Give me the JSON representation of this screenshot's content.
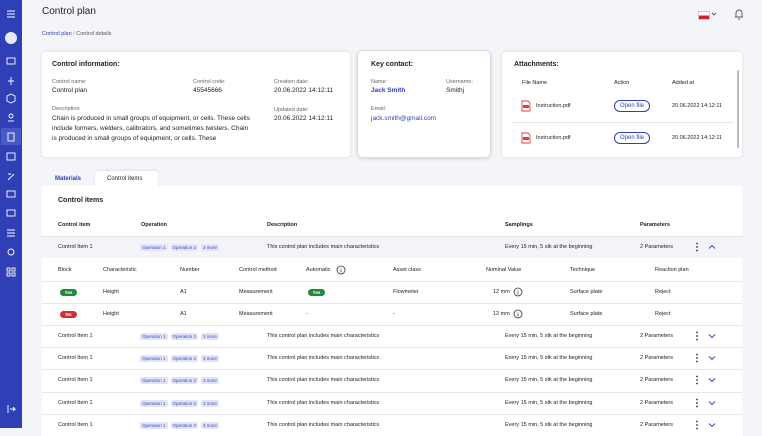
{
  "header": {
    "title": "Control plan",
    "breadcrumb": [
      "Control plan",
      "Control details"
    ]
  },
  "control_information": {
    "title": "Control information:",
    "fields": [
      {
        "label": "Control name:",
        "value": "Control plan"
      },
      {
        "label": "Control code:",
        "value": "45545666"
      },
      {
        "label": "Creation date:",
        "value": "20.06.2022 14:12:11"
      },
      {
        "label": "Updated date:",
        "value": "20.06.2022 14:12:11"
      }
    ],
    "description": {
      "label": "Description",
      "value": "Chain is produced in small groups of equipment, or cells. These cells include formers, welders, calibrators, and sometimes twisters. Chain is produced in small groups of equipment, or cells. These"
    }
  },
  "key_contact": {
    "title": "Key contact:",
    "name": {
      "label": "Name:",
      "value": "Jack Smith"
    },
    "username": {
      "label": "Username:",
      "value": "Smithj"
    },
    "email": {
      "label": "Email:",
      "value": "jack.smith@gmail.com"
    }
  },
  "attachments": {
    "title": "Attachments:",
    "columns": [
      "File Name",
      "Action",
      "Added at"
    ],
    "rows": [
      {
        "file": "Instruction.pdf",
        "action": "Open file",
        "added": "20.06.2022 14:12:11"
      },
      {
        "file": "Instruction.pdf",
        "action": "Open file",
        "added": "20.06.2022 14:12:11"
      }
    ]
  },
  "tabs": [
    "Materials",
    "Control items"
  ],
  "control_items": {
    "title": "Control items",
    "columns": [
      "Control item",
      "Operation",
      "Description",
      "Samplings",
      "Parameters"
    ],
    "rows": [
      {
        "item": "Control Item 1",
        "operations": [
          "Operation 1",
          "Operation 2",
          "3 more"
        ],
        "description": "This control plan includes main characteristics",
        "samplings": "Every 15 min, 5 stk at the beginning",
        "parameters": "2 Parameters"
      },
      {
        "item": "Control Item 1",
        "operations": [
          "Operation 1",
          "Operation 2",
          "3 more"
        ],
        "description": "This control plan includes main characteristics",
        "samplings": "Every 15 min, 5 stk at the beginning",
        "parameters": "2 Parameters"
      },
      {
        "item": "Control Item 1",
        "operations": [
          "Operation 1",
          "Operation 2",
          "3 more"
        ],
        "description": "This control plan includes main characteristics",
        "samplings": "Every 15 min, 5 stk at the beginning",
        "parameters": "2 Parameters"
      },
      {
        "item": "Control Item 1",
        "operations": [
          "Operation 1",
          "Operation 2",
          "3 more"
        ],
        "description": "This control plan includes main characteristics",
        "samplings": "Every 15 min, 5 stk at the beginning",
        "parameters": "2 Parameters"
      },
      {
        "item": "Control Item 1",
        "operations": [
          "Operation 1",
          "Operation 2",
          "3 more"
        ],
        "description": "This control plan includes main characteristics",
        "samplings": "Every 15 min, 5 stk at the beginning",
        "parameters": "2 Parameters"
      },
      {
        "item": "Control Item 1",
        "operations": [
          "Operation 1",
          "Operation 2",
          "3 more"
        ],
        "description": "This control plan includes main characteristics",
        "samplings": "Every 15 min, 5 stk at the beginning",
        "parameters": "2 Parameters"
      }
    ],
    "detail": {
      "columns": [
        "Block",
        "Characteristic",
        "Number",
        "Control method",
        "Automatic",
        "Asset class",
        "Nominal Value",
        "Technique",
        "Reaction plan"
      ],
      "rows": [
        [
          "Yes",
          "Height",
          "A1",
          "Measurement",
          "Yes",
          "Flowmeter",
          "12 mm",
          "Surface plate",
          "Reject"
        ],
        [
          "No",
          "Height",
          "A1",
          "Measurement",
          "-",
          "-",
          "12 mm",
          "Surface plate",
          "Reject"
        ]
      ]
    }
  }
}
